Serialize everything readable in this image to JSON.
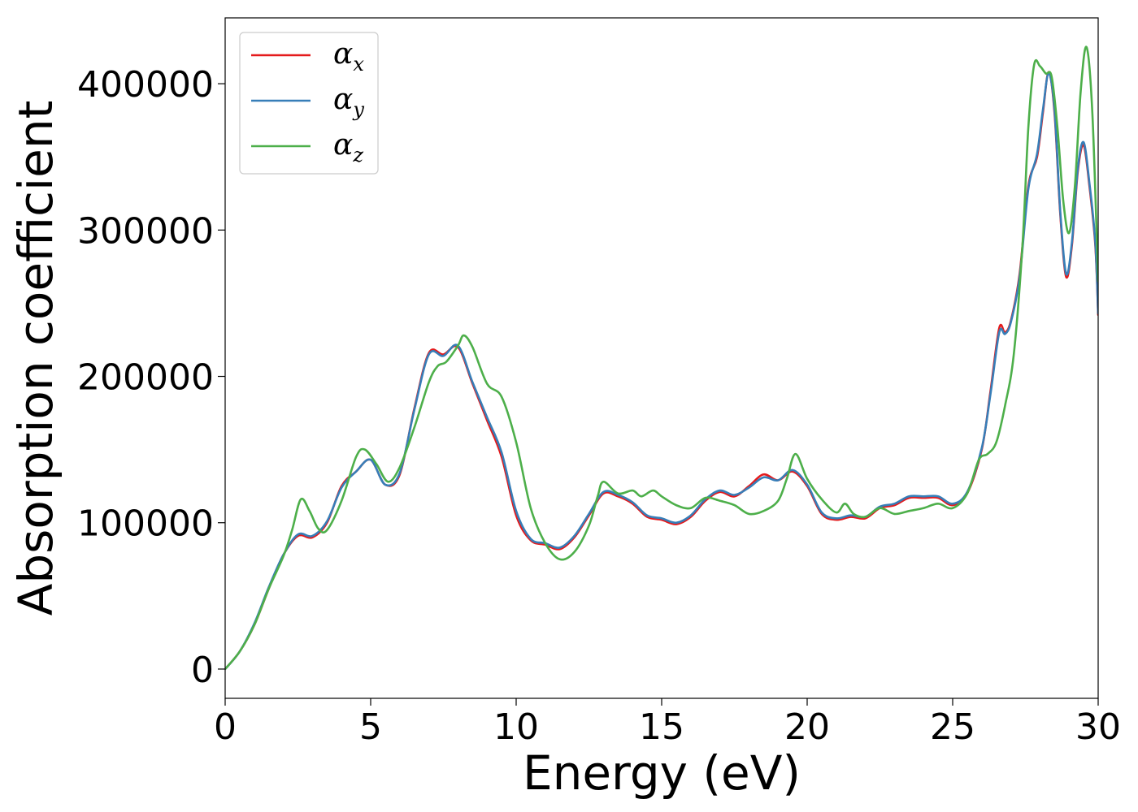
{
  "chart_data": {
    "type": "line",
    "title": "",
    "xlabel": "Energy (eV)",
    "ylabel": "Absorption coefficient",
    "xlim": [
      0,
      30
    ],
    "ylim": [
      -20000,
      445000
    ],
    "x_ticks": [
      0,
      5,
      10,
      15,
      20,
      25,
      30
    ],
    "x_tick_labels": [
      "0",
      "5",
      "10",
      "15",
      "20",
      "25",
      "30"
    ],
    "y_ticks": [
      0,
      100000,
      200000,
      300000,
      400000
    ],
    "y_tick_labels": [
      "0",
      "100000",
      "200000",
      "300000",
      "400000"
    ],
    "grid": false,
    "legend": {
      "position": "top-left"
    },
    "series": [
      {
        "name": "αx",
        "symbol": "α",
        "subscript": "x",
        "color": "#e41a1c",
        "x": [
          0,
          0.5,
          1.0,
          1.5,
          2.0,
          2.5,
          3.0,
          3.5,
          4.0,
          4.5,
          5.0,
          5.5,
          6.0,
          6.5,
          7.0,
          7.5,
          8.0,
          8.5,
          9.0,
          9.5,
          10.0,
          10.5,
          11.0,
          11.5,
          12.0,
          12.5,
          13.0,
          13.5,
          14.0,
          14.5,
          15.0,
          15.5,
          16.0,
          16.5,
          17.0,
          17.5,
          18.0,
          18.5,
          19.0,
          19.5,
          20.0,
          20.5,
          21.0,
          21.5,
          22.0,
          22.5,
          23.0,
          23.5,
          24.0,
          24.5,
          25.0,
          25.5,
          26.0,
          26.3,
          26.6,
          26.8,
          27.0,
          27.3,
          27.6,
          27.9,
          28.1,
          28.3,
          28.5,
          28.7,
          28.9,
          29.1,
          29.3,
          29.5,
          29.7,
          29.9,
          30.0
        ],
        "y": [
          0,
          12000,
          30000,
          55000,
          78000,
          91000,
          90000,
          100000,
          125000,
          135000,
          143000,
          126000,
          133000,
          178000,
          216000,
          215000,
          220000,
          195000,
          170000,
          145000,
          105000,
          88000,
          85000,
          82000,
          90000,
          105000,
          120000,
          118000,
          113000,
          104000,
          102000,
          99000,
          104000,
          115000,
          121000,
          118000,
          125000,
          133000,
          129000,
          135000,
          125000,
          106000,
          102000,
          104000,
          103000,
          110000,
          112000,
          117000,
          117000,
          117000,
          112000,
          120000,
          150000,
          190000,
          233000,
          230000,
          238000,
          270000,
          330000,
          350000,
          380000,
          408000,
          380000,
          310000,
          268000,
          290000,
          340000,
          358000,
          330000,
          290000,
          242000
        ]
      },
      {
        "name": "αy",
        "symbol": "α",
        "subscript": "y",
        "color": "#377eb8",
        "x": [
          0,
          0.5,
          1.0,
          1.5,
          2.0,
          2.5,
          3.0,
          3.5,
          4.0,
          4.5,
          5.0,
          5.5,
          6.0,
          6.5,
          7.0,
          7.5,
          8.0,
          8.5,
          9.0,
          9.5,
          10.0,
          10.5,
          11.0,
          11.5,
          12.0,
          12.5,
          13.0,
          13.5,
          14.0,
          14.5,
          15.0,
          15.5,
          16.0,
          16.5,
          17.0,
          17.5,
          18.0,
          18.5,
          19.0,
          19.5,
          20.0,
          20.5,
          21.0,
          21.5,
          22.0,
          22.5,
          23.0,
          23.5,
          24.0,
          24.5,
          25.0,
          25.5,
          26.0,
          26.3,
          26.6,
          26.8,
          27.0,
          27.3,
          27.6,
          27.9,
          28.1,
          28.3,
          28.5,
          28.7,
          28.9,
          29.1,
          29.3,
          29.5,
          29.7,
          29.9,
          30.0
        ],
        "y": [
          0,
          12000,
          31000,
          56000,
          78000,
          92000,
          91000,
          101000,
          124000,
          135000,
          143000,
          126000,
          134000,
          177000,
          215000,
          214000,
          221000,
          196000,
          172000,
          148000,
          108000,
          89000,
          86000,
          83000,
          91000,
          106000,
          121000,
          119000,
          114000,
          105000,
          103000,
          100000,
          105000,
          116000,
          122000,
          119000,
          124000,
          131000,
          129000,
          136000,
          126000,
          107000,
          103000,
          105000,
          104000,
          111000,
          113000,
          118000,
          118000,
          118000,
          113000,
          121000,
          151000,
          188000,
          230000,
          229000,
          237000,
          268000,
          328000,
          352000,
          382000,
          407000,
          382000,
          312000,
          270000,
          292000,
          342000,
          360000,
          332000,
          292000,
          243000
        ]
      },
      {
        "name": "αz",
        "symbol": "α",
        "subscript": "z",
        "color": "#4daf4a",
        "x": [
          0,
          0.5,
          1.0,
          1.5,
          2.0,
          2.3,
          2.6,
          2.9,
          3.2,
          3.5,
          4.0,
          4.5,
          4.8,
          5.2,
          5.6,
          6.0,
          6.5,
          7.0,
          7.3,
          7.6,
          8.0,
          8.2,
          8.5,
          9.0,
          9.5,
          10.0,
          10.5,
          11.0,
          11.5,
          12.0,
          12.5,
          12.8,
          13.0,
          13.5,
          14.0,
          14.3,
          14.7,
          15.0,
          15.5,
          16.0,
          16.5,
          17.0,
          17.5,
          18.0,
          18.5,
          19.0,
          19.3,
          19.6,
          20.0,
          20.5,
          21.0,
          21.3,
          21.6,
          22.0,
          22.5,
          23.0,
          23.5,
          24.0,
          24.5,
          25.0,
          25.5,
          25.9,
          26.2,
          26.5,
          26.8,
          27.1,
          27.4,
          27.6,
          27.8,
          28.0,
          28.2,
          28.4,
          28.6,
          28.8,
          29.0,
          29.2,
          29.4,
          29.6,
          29.8,
          30.0
        ],
        "y": [
          0,
          12000,
          30000,
          55000,
          77000,
          95000,
          116000,
          108000,
          96000,
          95000,
          115000,
          145000,
          150000,
          140000,
          128000,
          138000,
          165000,
          196000,
          207000,
          210000,
          221000,
          228000,
          220000,
          195000,
          186000,
          155000,
          110000,
          86000,
          75000,
          80000,
          98000,
          118000,
          128000,
          120000,
          122000,
          118000,
          122000,
          118000,
          112000,
          110000,
          117000,
          115000,
          112000,
          106000,
          108000,
          115000,
          130000,
          147000,
          130000,
          116000,
          107000,
          113000,
          106000,
          104000,
          110000,
          106000,
          108000,
          110000,
          113000,
          110000,
          120000,
          143000,
          147000,
          155000,
          180000,
          215000,
          290000,
          370000,
          413000,
          412000,
          407000,
          405000,
          370000,
          320000,
          298000,
          330000,
          395000,
          425000,
          380000,
          265000
        ]
      }
    ]
  }
}
